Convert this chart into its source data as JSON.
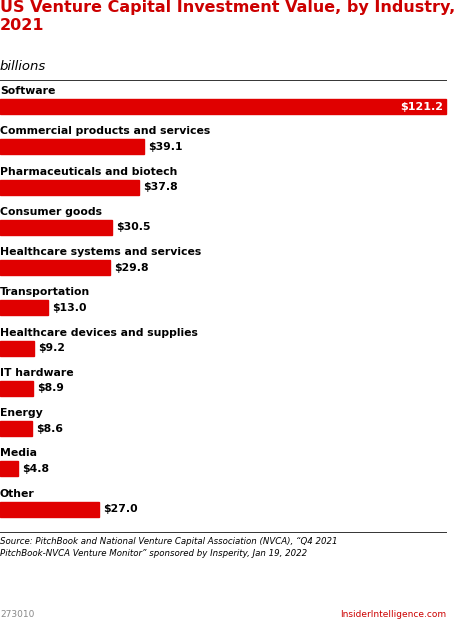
{
  "title_line1": "US Venture Capital Investment Value, by Industry,",
  "title_line2": "2021",
  "subtitle": "billions",
  "categories": [
    "Software",
    "Commercial products and services",
    "Pharmaceuticals and biotech",
    "Consumer goods",
    "Healthcare systems and services",
    "Transportation",
    "Healthcare devices and supplies",
    "IT hardware",
    "Energy",
    "Media",
    "Other"
  ],
  "values": [
    121.2,
    39.1,
    37.8,
    30.5,
    29.8,
    13.0,
    9.2,
    8.9,
    8.6,
    4.8,
    27.0
  ],
  "labels": [
    "$121.2",
    "$39.1",
    "$37.8",
    "$30.5",
    "$29.8",
    "$13.0",
    "$9.2",
    "$8.9",
    "$8.6",
    "$4.8",
    "$27.0"
  ],
  "bar_color": "#e00000",
  "title_color": "#cc0000",
  "text_color": "#000000",
  "bg_color": "#ffffff",
  "footer_text": "Source: PitchBook and National Venture Capital Association (NVCA), “Q4 2021\nPitchBook-NVCA Venture Monitor” sponsored by Insperity, Jan 19, 2022",
  "watermark": "273010",
  "brand": "InsiderIntelligence.com",
  "brand_color": "#cc0000",
  "max_value": 121.2
}
